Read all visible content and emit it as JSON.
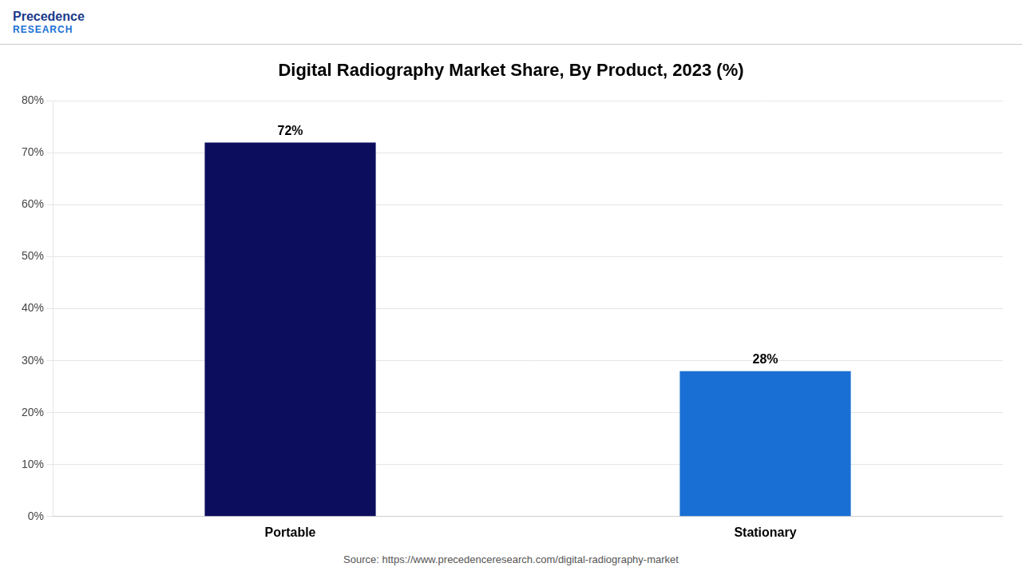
{
  "chart_data": {
    "type": "bar",
    "title": "Digital Radiography Market Share, By Product, 2023 (%)",
    "categories": [
      "Portable",
      "Stationary"
    ],
    "values": [
      72,
      28
    ],
    "value_labels": [
      "72%",
      "28%"
    ],
    "data_labels": true,
    "colors": [
      "#0d0d5e",
      "#1a6fd4"
    ],
    "ylim": [
      0,
      80
    ],
    "yticks": [
      {
        "value": 0,
        "label": "0%"
      },
      {
        "value": 10,
        "label": "10%"
      },
      {
        "value": 20,
        "label": "20%"
      },
      {
        "value": 30,
        "label": "30%"
      },
      {
        "value": 40,
        "label": "40%"
      },
      {
        "value": 50,
        "label": "50%"
      },
      {
        "value": 60,
        "label": "60%"
      },
      {
        "value": 70,
        "label": "70%"
      },
      {
        "value": 80,
        "label": "80%"
      }
    ],
    "grid": true,
    "annotations": [
      "Precedence",
      "RESEARCH",
      "Source: https://www.precedenceresearch.com/digital-radiography-market"
    ]
  }
}
